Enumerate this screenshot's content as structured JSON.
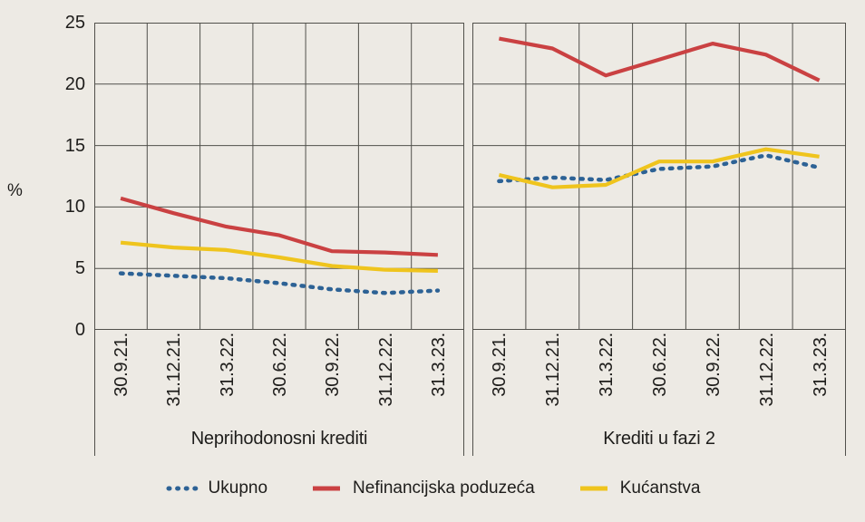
{
  "unit_label": "%",
  "colors": {
    "background": "#EDEAE4",
    "grid": "#51504B",
    "text": "#1E1D1B",
    "ukupno": "#2D6295",
    "nefinancijska_poduzeca": "#CA4142",
    "kucanstva": "#EFC41D"
  },
  "legend": {
    "position": "bottom",
    "items": [
      {
        "key": "ukupno",
        "label": "Ukupno",
        "color": "#2D6295",
        "line_style": "dashed"
      },
      {
        "key": "nefinancijska-poduzeca",
        "label": "Nefinancijska poduzeća",
        "color": "#CA4142",
        "line_style": "solid"
      },
      {
        "key": "kucanstva",
        "label": "Kućanstva",
        "color": "#EFC41D",
        "line_style": "solid"
      }
    ]
  },
  "chart_data": [
    {
      "type": "line",
      "title": "Neprihodonosni krediti",
      "ylabel": "%",
      "ylim": [
        0,
        25
      ],
      "yticks": [
        0,
        5,
        10,
        15,
        20,
        25
      ],
      "grid": true,
      "categories": [
        "30.9.21.",
        "31.12.21.",
        "31.3.22.",
        "30.6.22.",
        "30.9.22.",
        "31.12.22.",
        "31.3.23."
      ],
      "series": [
        {
          "key": "ukupno",
          "name": "Ukupno",
          "style": "dashed",
          "color": "#2D6295",
          "values": [
            4.6,
            4.4,
            4.2,
            3.8,
            3.3,
            3.0,
            3.2
          ]
        },
        {
          "key": "nefinancijska-poduzeca",
          "name": "Nefinancijska poduzeća",
          "style": "solid",
          "color": "#CA4142",
          "values": [
            10.7,
            9.5,
            8.4,
            7.7,
            6.4,
            6.3,
            6.1
          ]
        },
        {
          "key": "kucanstva",
          "name": "Kućanstva",
          "style": "solid",
          "color": "#EFC41D",
          "values": [
            7.1,
            6.7,
            6.5,
            5.9,
            5.2,
            4.9,
            4.8
          ]
        }
      ]
    },
    {
      "type": "line",
      "title": "Krediti u fazi 2",
      "ylabel": "%",
      "ylim": [
        0,
        25
      ],
      "yticks": [
        0,
        5,
        10,
        15,
        20,
        25
      ],
      "grid": true,
      "categories": [
        "30.9.21.",
        "31.12.21.",
        "31.3.22.",
        "30.6.22.",
        "30.9.22.",
        "31.12.22.",
        "31.3.23."
      ],
      "series": [
        {
          "key": "ukupno",
          "name": "Ukupno",
          "style": "dashed",
          "color": "#2D6295",
          "values": [
            12.1,
            12.4,
            12.2,
            13.1,
            13.3,
            14.2,
            13.2
          ]
        },
        {
          "key": "nefinancijska-poduzeca",
          "name": "Nefinancijska poduzeća",
          "style": "solid",
          "color": "#CA4142",
          "values": [
            23.7,
            22.9,
            20.7,
            22.0,
            23.3,
            22.4,
            20.3
          ]
        },
        {
          "key": "kucanstva",
          "name": "Kućanstva",
          "style": "solid",
          "color": "#EFC41D",
          "values": [
            12.6,
            11.6,
            11.8,
            13.7,
            13.7,
            14.7,
            14.1
          ]
        }
      ]
    }
  ]
}
